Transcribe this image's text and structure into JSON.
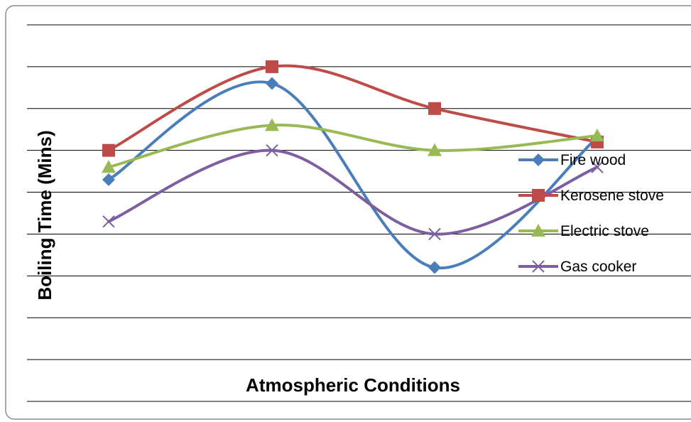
{
  "chart_data": {
    "type": "line",
    "title": "",
    "xlabel": "Atmospheric Conditions",
    "ylabel": "Boiling Time (Mins)",
    "categories": [
      "",
      "",
      "",
      ""
    ],
    "ylim": [
      0,
      9
    ],
    "grid": true,
    "smooth": true,
    "legend_position": "right",
    "series": [
      {
        "name": "Fire wood",
        "color": "#4a7ebb",
        "marker": "diamond",
        "values": [
          5.3,
          7.6,
          3.2,
          6.3
        ]
      },
      {
        "name": "Kerosene stove",
        "color": "#be4b48",
        "marker": "square",
        "values": [
          6.0,
          8.0,
          7.0,
          6.2
        ]
      },
      {
        "name": "Electric stove",
        "color": "#98b954",
        "marker": "triangle",
        "values": [
          5.6,
          6.6,
          6.0,
          6.35
        ]
      },
      {
        "name": "Gas cooker",
        "color": "#7d5fa0",
        "marker": "x",
        "values": [
          4.3,
          6.0,
          4.0,
          5.6
        ]
      }
    ]
  }
}
